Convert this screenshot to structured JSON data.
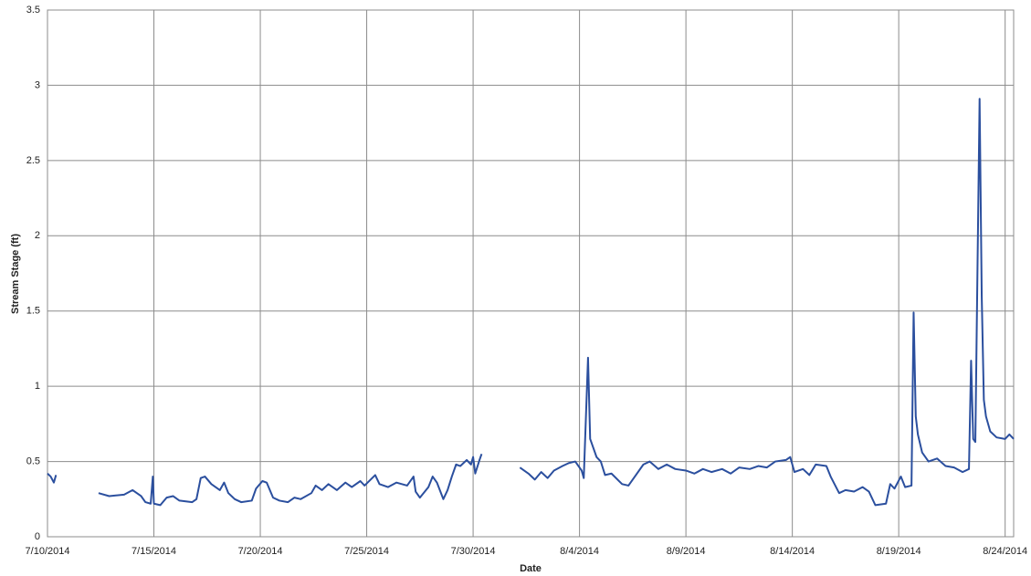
{
  "chart_data": {
    "type": "line",
    "x_label": "Date",
    "y_label": "Stream Stage (ft)",
    "color": "#2b4f9e",
    "grid": true,
    "xlim": [
      41830,
      41875.4
    ],
    "xticks": [
      {
        "value": 41830,
        "label": "7/10/2014"
      },
      {
        "value": 41835,
        "label": "7/15/2014"
      },
      {
        "value": 41840,
        "label": "7/20/2014"
      },
      {
        "value": 41845,
        "label": "7/25/2014"
      },
      {
        "value": 41850,
        "label": "7/30/2014"
      },
      {
        "value": 41855,
        "label": "8/4/2014"
      },
      {
        "value": 41860,
        "label": "8/9/2014"
      },
      {
        "value": 41865,
        "label": "8/14/2014"
      },
      {
        "value": 41870,
        "label": "8/19/2014"
      },
      {
        "value": 41875,
        "label": "8/24/2014"
      }
    ],
    "ylim": [
      0,
      3.5
    ],
    "yticks": [
      0,
      0.5,
      1,
      1.5,
      2,
      2.5,
      3,
      3.5
    ],
    "x": [
      41830,
      41830.15,
      41830.3,
      41830.4,
      41831,
      41832.4,
      41832.9,
      41833.6,
      41834.0,
      41834.4,
      41834.6,
      41834.85,
      41834.95,
      41835.0,
      41835.3,
      41835.6,
      41835.9,
      41836.2,
      41836.8,
      41837.0,
      41837.2,
      41837.4,
      41837.7,
      41838.1,
      41838.3,
      41838.5,
      41838.8,
      41839.1,
      41839.6,
      41839.8,
      41840.1,
      41840.3,
      41840.6,
      41840.9,
      41841.3,
      41841.6,
      41841.9,
      41842.4,
      41842.6,
      41842.9,
      41843.2,
      41843.6,
      41844.0,
      41844.3,
      41844.7,
      41844.9,
      41845.4,
      41845.6,
      41846.0,
      41846.4,
      41846.9,
      41847.2,
      41847.3,
      41847.5,
      41847.9,
      41848.1,
      41848.3,
      41848.6,
      41848.8,
      41849.0,
      41849.2,
      41849.4,
      41849.7,
      41849.9,
      41850.0,
      41850.1,
      41850.3,
      41850.4,
      41851,
      41852.2,
      41852.6,
      41852.9,
      41853.2,
      41853.5,
      41853.8,
      41854.2,
      41854.5,
      41854.8,
      41855.1,
      41855.2,
      41855.4,
      41855.5,
      41855.8,
      41856.0,
      41856.2,
      41856.5,
      41857.0,
      41857.3,
      41857.6,
      41858.0,
      41858.3,
      41858.7,
      41859.1,
      41859.5,
      41860.0,
      41860.4,
      41860.8,
      41861.2,
      41861.7,
      41862.1,
      41862.5,
      41863.0,
      41863.4,
      41863.8,
      41864.2,
      41864.7,
      41864.9,
      41865.1,
      41865.5,
      41865.8,
      41866.1,
      41866.6,
      41866.8,
      41867.2,
      41867.5,
      41867.9,
      41868.3,
      41868.6,
      41868.9,
      41869.4,
      41869.6,
      41869.8,
      41870.1,
      41870.3,
      41870.6,
      41870.7,
      41870.8,
      41870.9,
      41871.1,
      41871.4,
      41871.8,
      41872.2,
      41872.6,
      41873.0,
      41873.3,
      41873.4,
      41873.5,
      41873.6,
      41873.8,
      41873.9,
      41874.0,
      41874.1,
      41874.3,
      41874.6,
      41875.0,
      41875.2,
      41875.4
    ],
    "values": [
      0.42,
      0.4,
      0.36,
      0.41,
      null,
      0.29,
      0.27,
      0.28,
      0.31,
      0.27,
      0.23,
      0.22,
      0.4,
      0.22,
      0.21,
      0.26,
      0.27,
      0.24,
      0.23,
      0.25,
      0.39,
      0.4,
      0.35,
      0.31,
      0.36,
      0.29,
      0.25,
      0.23,
      0.24,
      0.32,
      0.37,
      0.36,
      0.26,
      0.24,
      0.23,
      0.26,
      0.25,
      0.29,
      0.34,
      0.31,
      0.35,
      0.31,
      0.36,
      0.33,
      0.37,
      0.34,
      0.41,
      0.35,
      0.33,
      0.36,
      0.34,
      0.4,
      0.3,
      0.26,
      0.33,
      0.4,
      0.36,
      0.25,
      0.31,
      0.4,
      0.48,
      0.47,
      0.51,
      0.48,
      0.53,
      0.42,
      0.51,
      0.55,
      null,
      0.46,
      0.42,
      0.38,
      0.43,
      0.39,
      0.44,
      0.47,
      0.49,
      0.5,
      0.44,
      0.39,
      1.19,
      0.65,
      0.53,
      0.5,
      0.41,
      0.42,
      0.35,
      0.34,
      0.4,
      0.48,
      0.5,
      0.45,
      0.48,
      0.45,
      0.44,
      0.42,
      0.45,
      0.43,
      0.45,
      0.42,
      0.46,
      0.45,
      0.47,
      0.46,
      0.5,
      0.51,
      0.53,
      0.43,
      0.45,
      0.41,
      0.48,
      0.47,
      0.4,
      0.29,
      0.31,
      0.3,
      0.33,
      0.3,
      0.21,
      0.22,
      0.35,
      0.32,
      0.4,
      0.33,
      0.34,
      1.49,
      0.8,
      0.68,
      0.56,
      0.5,
      0.52,
      0.47,
      0.46,
      0.43,
      0.45,
      1.17,
      0.65,
      0.63,
      2.91,
      1.6,
      0.91,
      0.8,
      0.7,
      0.66,
      0.65,
      0.68,
      0.65
    ]
  }
}
